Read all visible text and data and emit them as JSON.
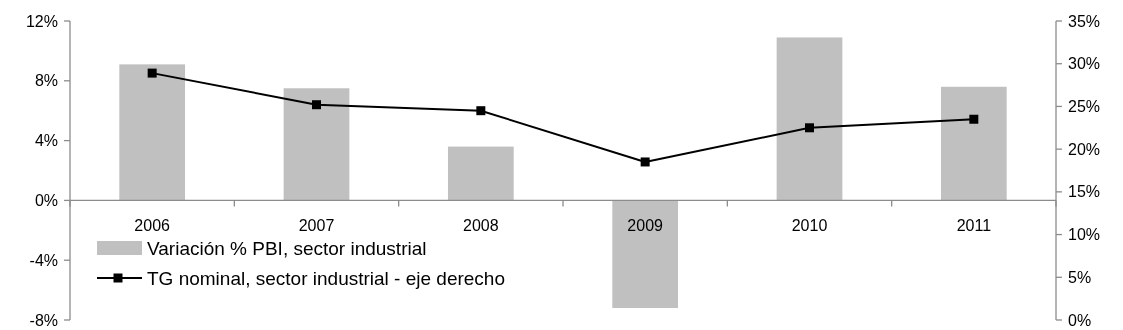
{
  "chart_data": {
    "type": "bar",
    "categories": [
      "2006",
      "2007",
      "2008",
      "2009",
      "2010",
      "2011"
    ],
    "series": [
      {
        "name": "Variación % PBI, sector industrial",
        "color": "#c0c0c0",
        "values": [
          9.1,
          7.5,
          3.6,
          -7.2,
          10.9,
          7.6
        ]
      },
      {
        "name": "TG nominal, sector industrial - eje derecho",
        "type": "line",
        "axis": "y2",
        "color": "#000000",
        "marker": "square",
        "values": [
          28.9,
          25.2,
          24.5,
          18.5,
          22.5,
          23.5
        ]
      }
    ],
    "ylim": [
      -8,
      12
    ],
    "yticks": [
      {
        "value": -8,
        "label": "-8%"
      },
      {
        "value": -4,
        "label": "-4%"
      },
      {
        "value": 0,
        "label": "0%"
      },
      {
        "value": 4,
        "label": "4%"
      },
      {
        "value": 8,
        "label": "8%"
      },
      {
        "value": 12,
        "label": "12%"
      }
    ],
    "y2lim": [
      0,
      35
    ],
    "y2ticks": [
      {
        "value": 0,
        "label": "0%"
      },
      {
        "value": 5,
        "label": "5%"
      },
      {
        "value": 10,
        "label": "10%"
      },
      {
        "value": 15,
        "label": "15%"
      },
      {
        "value": 20,
        "label": "20%"
      },
      {
        "value": 25,
        "label": "25%"
      },
      {
        "value": 30,
        "label": "30%"
      },
      {
        "value": 35,
        "label": "35%"
      }
    ],
    "grid": false,
    "legend": "bottom left"
  }
}
